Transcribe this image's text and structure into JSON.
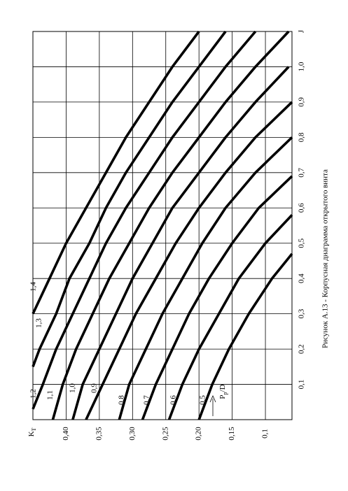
{
  "chart_data": {
    "type": "line",
    "caption": "Рисунок А.13 - Корпусная диаграмма открытого винта",
    "x_label": "J",
    "y_label": "K",
    "y_label_sub": "T",
    "annotation": "P",
    "annotation_sub": "p",
    "annotation_tail": "/D",
    "xlim": [
      0,
      1.1
    ],
    "xticks": [
      {
        "value": 0.1,
        "label": "0,1"
      },
      {
        "value": 0.2,
        "label": "0,2"
      },
      {
        "value": 0.3,
        "label": "0,3"
      },
      {
        "value": 0.4,
        "label": "0,4"
      },
      {
        "value": 0.5,
        "label": "0,5"
      },
      {
        "value": 0.6,
        "label": "0,6"
      },
      {
        "value": 0.7,
        "label": "0,7"
      },
      {
        "value": 0.8,
        "label": "0,8"
      },
      {
        "value": 0.9,
        "label": "0,9"
      },
      {
        "value": 1.0,
        "label": "1,0"
      }
    ],
    "ylim": [
      0.06,
      0.45
    ],
    "yticks": [
      {
        "value": 0.1,
        "label": "0,1"
      },
      {
        "value": 0.15,
        "label": "0,15"
      },
      {
        "value": 0.2,
        "label": "0,20"
      },
      {
        "value": 0.25,
        "label": "0,25"
      },
      {
        "value": 0.3,
        "label": "0,30"
      },
      {
        "value": 0.35,
        "label": "0,35"
      },
      {
        "value": 0.4,
        "label": "0,40"
      }
    ],
    "grid": true,
    "color": "#000000",
    "series": [
      {
        "name": "0,5",
        "x": [
          0,
          0.1,
          0.2,
          0.3,
          0.4,
          0.47
        ],
        "values": [
          0.2,
          0.18,
          0.155,
          0.125,
          0.09,
          0.06
        ]
      },
      {
        "name": "0,6",
        "x": [
          0,
          0.1,
          0.2,
          0.3,
          0.4,
          0.5,
          0.58
        ],
        "values": [
          0.245,
          0.225,
          0.2,
          0.17,
          0.14,
          0.1,
          0.06
        ]
      },
      {
        "name": "0,7",
        "x": [
          0,
          0.1,
          0.2,
          0.3,
          0.4,
          0.5,
          0.6,
          0.69
        ],
        "values": [
          0.285,
          0.265,
          0.24,
          0.215,
          0.185,
          0.15,
          0.11,
          0.06
        ]
      },
      {
        "name": "0,8",
        "x": [
          0,
          0.1,
          0.2,
          0.3,
          0.4,
          0.5,
          0.6,
          0.7,
          0.8
        ],
        "values": [
          0.32,
          0.305,
          0.28,
          0.255,
          0.225,
          0.195,
          0.16,
          0.115,
          0.06
        ]
      },
      {
        "name": "0,9",
        "x": [
          0,
          0.1,
          0.2,
          0.3,
          0.4,
          0.5,
          0.6,
          0.7,
          0.8,
          0.9
        ],
        "values": [
          0.37,
          0.345,
          0.32,
          0.295,
          0.265,
          0.235,
          0.2,
          0.16,
          0.115,
          0.06
        ]
      },
      {
        "name": "1,0",
        "x": [
          0,
          0.1,
          0.2,
          0.3,
          0.4,
          0.5,
          0.6,
          0.7,
          0.8,
          0.9,
          1.0
        ],
        "values": [
          0.39,
          0.375,
          0.35,
          0.325,
          0.3,
          0.27,
          0.24,
          0.2,
          0.16,
          0.115,
          0.065
        ]
      },
      {
        "name": "1,1",
        "x": [
          0,
          0.1,
          0.2,
          0.3,
          0.4,
          0.5,
          0.6,
          0.7,
          0.8,
          0.9,
          1.0,
          1.1
        ],
        "values": [
          0.42,
          0.405,
          0.385,
          0.36,
          0.335,
          0.305,
          0.275,
          0.24,
          0.2,
          0.16,
          0.115,
          0.065
        ]
      },
      {
        "name": "1,2",
        "x": [
          0.03,
          0.1,
          0.2,
          0.3,
          0.4,
          0.5,
          0.6,
          0.7,
          0.8,
          0.9,
          1.0,
          1.1
        ],
        "values": [
          0.45,
          0.435,
          0.415,
          0.39,
          0.365,
          0.34,
          0.31,
          0.275,
          0.24,
          0.2,
          0.16,
          0.115
        ]
      },
      {
        "name": "1,3",
        "x": [
          0.15,
          0.2,
          0.3,
          0.4,
          0.5,
          0.6,
          0.7,
          0.8,
          0.9,
          1.0,
          1.1
        ],
        "values": [
          0.45,
          0.44,
          0.415,
          0.395,
          0.365,
          0.34,
          0.31,
          0.275,
          0.24,
          0.2,
          0.16
        ]
      },
      {
        "name": "1,4",
        "x": [
          0.3,
          0.4,
          0.5,
          0.6,
          0.7,
          0.8,
          0.9,
          1.0,
          1.1
        ],
        "values": [
          0.45,
          0.425,
          0.4,
          0.37,
          0.34,
          0.31,
          0.275,
          0.24,
          0.2
        ]
      }
    ]
  }
}
